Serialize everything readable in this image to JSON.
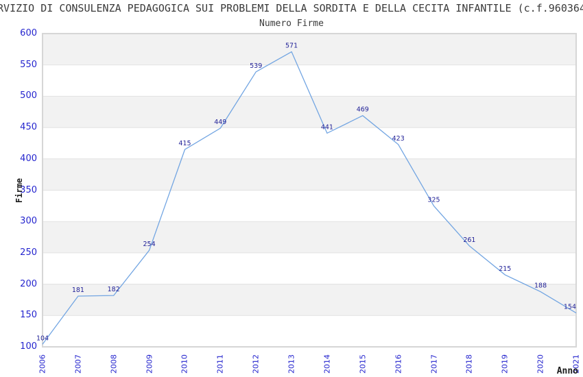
{
  "header": {
    "title": "RVIZIO DI CONSULENZA PEDAGOGICA SUI PROBLEMI DELLA SORDITA E DELLA CECITA INFANTILE (c.f.960364",
    "subtitle": "Numero Firme"
  },
  "chart_data": {
    "type": "line",
    "title": "Numero Firme",
    "xlabel": "Anno",
    "ylabel": "Firme",
    "categories": [
      "2006",
      "2007",
      "2008",
      "2009",
      "2010",
      "2011",
      "2012",
      "2013",
      "2014",
      "2015",
      "2016",
      "2017",
      "2018",
      "2019",
      "2020",
      "2021"
    ],
    "values": [
      104,
      181,
      182,
      254,
      415,
      449,
      539,
      571,
      441,
      469,
      423,
      325,
      261,
      215,
      188,
      154
    ],
    "ylim": [
      100,
      600
    ],
    "y_ticks": [
      600,
      550,
      500,
      450,
      400,
      350,
      300,
      250,
      200,
      150,
      100
    ],
    "grid": "horizontal alternating bands with gridlines",
    "legend": "none",
    "colors": {
      "line": "#72a5e2",
      "data_label": "#1e1e96",
      "tick_label": "#2424ce",
      "band": "#f2f2f2",
      "band_alt": "#ffffff",
      "gridline": "#e1e1e1",
      "border": "#d6d6d6",
      "title_text": "#3a3a3a",
      "axis_label_text": "#1c1c1c"
    }
  }
}
